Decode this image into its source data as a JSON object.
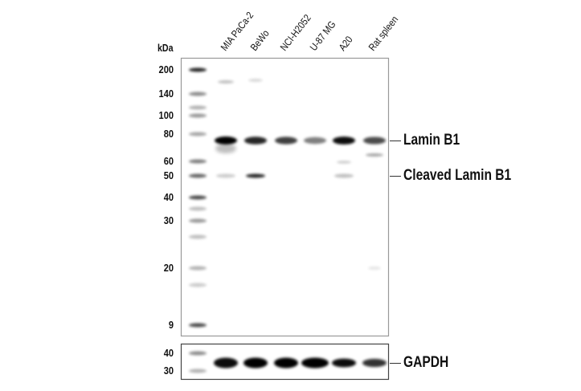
{
  "unit_label": "kDa",
  "lanes": [
    "MIA PaCa-2",
    "BeWo",
    "NCI-H2052",
    "U-87 MG",
    "A20",
    "Rat spleen"
  ],
  "main_blot_markers": [
    "200",
    "140",
    "100",
    "80",
    "60",
    "50",
    "40",
    "30",
    "20",
    "9"
  ],
  "loading_blot_markers": [
    "40",
    "30"
  ],
  "targets": {
    "lamin": "Lamin B1",
    "cleaved": "Cleaved Lamin B1",
    "gapdh": "GAPDH"
  },
  "band_intensity": {
    "lamin_b1": [
      1.0,
      0.85,
      0.75,
      0.5,
      0.95,
      0.7
    ],
    "cleaved_lamin_b1": [
      0.2,
      0.85,
      0.0,
      0.0,
      0.25,
      0.0
    ],
    "gapdh": [
      0.95,
      1.0,
      1.0,
      1.0,
      0.95,
      0.8
    ]
  }
}
